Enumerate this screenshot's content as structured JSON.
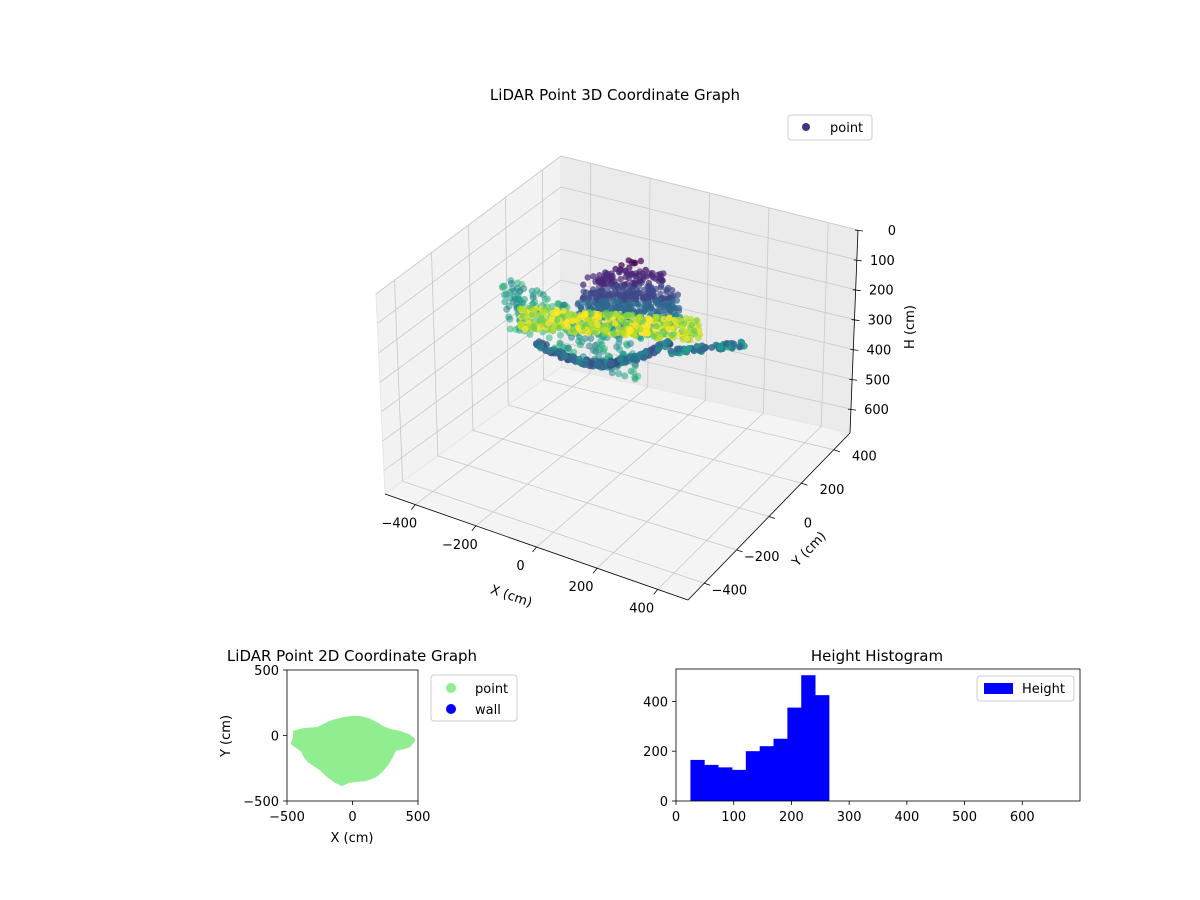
{
  "chart_data": [
    {
      "type": "scatter",
      "title": "LiDAR Point 3D Coordinate Graph",
      "xlabel": "X (cm)",
      "ylabel": "Y (cm)",
      "zlabel": "H (cm)",
      "x_ticks": [
        "−400",
        "−200",
        "0",
        "200",
        "400"
      ],
      "y_ticks": [
        "−400",
        "−200",
        "0",
        "200",
        "400"
      ],
      "z_ticks": [
        "0",
        "100",
        "200",
        "300",
        "400",
        "500",
        "600"
      ],
      "xlim": [
        -500,
        500
      ],
      "ylim": [
        -500,
        500
      ],
      "zlim": [
        0,
        680
      ],
      "z_inverted": true,
      "colormap": "viridis",
      "grid": true,
      "legend": {
        "position": "top-right",
        "entries": [
          {
            "label": "point",
            "color": "#46327e"
          }
        ]
      }
    },
    {
      "type": "scatter",
      "title": "LiDAR Point 2D Coordinate Graph",
      "xlabel": "X (cm)",
      "ylabel": "Y (cm)",
      "x_ticks": [
        "−500",
        "0",
        "500"
      ],
      "y_ticks": [
        "500",
        "0",
        "−500"
      ],
      "xlim": [
        -500,
        500
      ],
      "ylim": [
        -500,
        500
      ],
      "series": [
        {
          "name": "point",
          "color": "#90ee90"
        },
        {
          "name": "wall",
          "color": "#0000ff"
        }
      ],
      "legend": {
        "position": "outside-right",
        "entries": [
          {
            "label": "point",
            "color": "#90ee90"
          },
          {
            "label": "wall",
            "color": "#0000ff"
          }
        ]
      }
    },
    {
      "type": "bar",
      "title": "Height Histogram",
      "x_ticks": [
        "0",
        "100",
        "200",
        "300",
        "400",
        "500",
        "600"
      ],
      "y_ticks": [
        "0",
        "200",
        "400"
      ],
      "xlim": [
        0,
        700
      ],
      "ylim": [
        0,
        530
      ],
      "bin_edges": [
        25,
        49,
        73,
        97,
        121,
        145,
        169,
        193,
        217,
        241,
        265
      ],
      "values": [
        165,
        145,
        135,
        125,
        200,
        220,
        250,
        375,
        505,
        425
      ],
      "series": [
        {
          "name": "Height",
          "color": "#0000ff"
        }
      ],
      "legend": {
        "position": "top-right",
        "entries": [
          {
            "label": "Height",
            "color": "#0000ff"
          }
        ]
      }
    }
  ]
}
